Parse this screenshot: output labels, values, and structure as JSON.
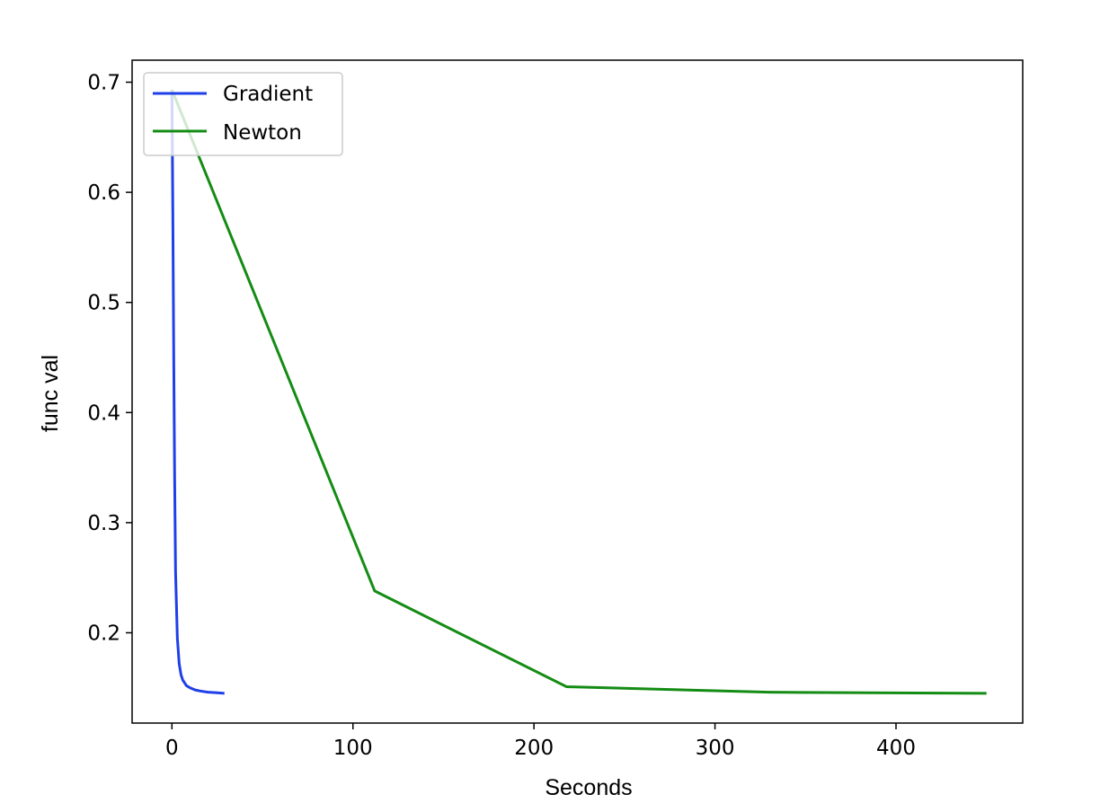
{
  "chart_data": {
    "type": "line",
    "title": "",
    "xlabel": "Seconds",
    "ylabel": "func val",
    "xlim": [
      -22,
      470
    ],
    "ylim": [
      0.118,
      0.72
    ],
    "x_ticks": [
      0,
      100,
      200,
      300,
      400
    ],
    "x_tick_labels": [
      "0",
      "100",
      "200",
      "300",
      "400"
    ],
    "y_ticks": [
      0.2,
      0.3,
      0.4,
      0.5,
      0.6,
      0.7
    ],
    "y_tick_labels": [
      "0.2",
      "0.3",
      "0.4",
      "0.5",
      "0.6",
      "0.7"
    ],
    "grid": false,
    "legend_position": "top-left",
    "series": [
      {
        "name": "Gradient",
        "color": "#1f3fe8",
        "x": [
          0,
          0.5,
          1,
          1.5,
          2,
          3,
          4,
          5,
          6,
          8,
          10,
          13,
          16,
          20,
          25,
          29
        ],
        "y": [
          0.693,
          0.58,
          0.45,
          0.34,
          0.255,
          0.195,
          0.172,
          0.162,
          0.157,
          0.152,
          0.15,
          0.148,
          0.147,
          0.146,
          0.1455,
          0.145
        ]
      },
      {
        "name": "Newton",
        "color": "#148c14",
        "x": [
          0,
          112,
          218,
          330,
          450
        ],
        "y": [
          0.693,
          0.238,
          0.151,
          0.146,
          0.145
        ]
      }
    ]
  }
}
